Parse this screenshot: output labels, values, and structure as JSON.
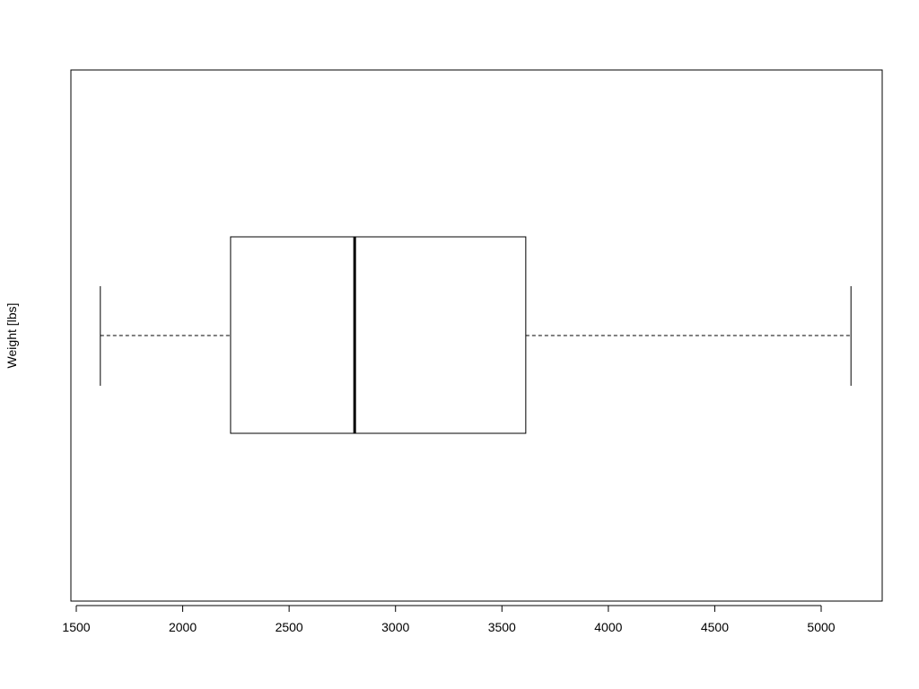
{
  "chart_data": {
    "type": "boxplot",
    "orientation": "horizontal",
    "title": "",
    "xlabel": "",
    "ylabel": "Weight [lbs]",
    "xlim": [
      1500,
      5200
    ],
    "x_ticks": [
      1500,
      2000,
      2500,
      3000,
      3500,
      4000,
      4500,
      5000
    ],
    "x_tick_labels": [
      "1500",
      "2000",
      "2500",
      "3000",
      "3500",
      "4000",
      "4500",
      "5000"
    ],
    "grid": false,
    "series": [
      {
        "whisker_low": 1613,
        "q1": 2225,
        "median": 2808,
        "q3": 3612,
        "whisker_high": 5140
      }
    ]
  }
}
